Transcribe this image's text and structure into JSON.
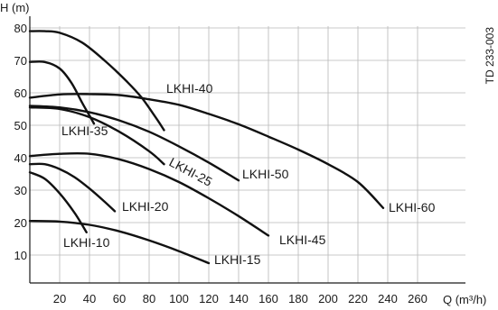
{
  "chart_data": {
    "type": "line",
    "xlabel": "Q (m³/h)",
    "ylabel": "H (m)",
    "doc_code": "TD 233-003",
    "xlim": [
      0,
      280
    ],
    "ylim": [
      0,
      80
    ],
    "x_ticks": [
      20,
      40,
      60,
      80,
      100,
      120,
      140,
      160,
      180,
      200,
      220,
      240,
      260
    ],
    "y_ticks": [
      10,
      20,
      30,
      40,
      50,
      60,
      70,
      80
    ],
    "grid": true,
    "series": [
      {
        "name": "LKHI-10",
        "x": [
          0,
          10,
          20,
          30,
          38
        ],
        "y": [
          35.5,
          33.5,
          29,
          23,
          17
        ]
      },
      {
        "name": "LKHI-15",
        "x": [
          0,
          20,
          40,
          60,
          80,
          100,
          120
        ],
        "y": [
          20.5,
          20.3,
          19.3,
          17.3,
          14.5,
          11.2,
          7.5
        ]
      },
      {
        "name": "LKHI-20",
        "x": [
          0,
          10,
          20,
          30,
          40,
          50,
          57
        ],
        "y": [
          38,
          38,
          36.5,
          34,
          30.5,
          26.5,
          23.5
        ]
      },
      {
        "name": "LKHI-25",
        "x": [
          0,
          20,
          40,
          60,
          80,
          90
        ],
        "y": [
          55.5,
          55,
          52.5,
          48,
          42,
          38
        ]
      },
      {
        "name": "LKHI-35",
        "x": [
          0,
          10,
          20,
          28,
          35,
          40,
          43
        ],
        "y": [
          69.5,
          69.5,
          67.5,
          63,
          57,
          53,
          50.5
        ]
      },
      {
        "name": "LKHI-40",
        "x": [
          0,
          10,
          20,
          35,
          50,
          65,
          75,
          85,
          90
        ],
        "y": [
          79,
          79,
          78.5,
          75.5,
          70,
          63.5,
          58.5,
          52,
          48.5
        ]
      },
      {
        "name": "LKHI-45",
        "x": [
          0,
          20,
          40,
          60,
          80,
          100,
          120,
          140,
          160
        ],
        "y": [
          40.5,
          41.2,
          41.2,
          39.5,
          36.5,
          32.5,
          27.5,
          22,
          16
        ]
      },
      {
        "name": "LKHI-50",
        "x": [
          0,
          20,
          40,
          60,
          80,
          100,
          120,
          140
        ],
        "y": [
          56,
          55.5,
          54,
          51.5,
          48,
          43.5,
          38.5,
          33
        ]
      },
      {
        "name": "LKHI-60",
        "x": [
          0,
          20,
          40,
          60,
          80,
          100,
          120,
          140,
          160,
          180,
          200,
          220,
          237
        ],
        "y": [
          58.5,
          59.5,
          59.6,
          59.3,
          58,
          56.3,
          53.5,
          50.3,
          46.5,
          42.5,
          38,
          32.5,
          24.5
        ]
      }
    ],
    "labels": [
      {
        "series": "LKHI-10",
        "text": "LKHI-10"
      },
      {
        "series": "LKHI-15",
        "text": "LKHI-15"
      },
      {
        "series": "LKHI-20",
        "text": "LKHI-20"
      },
      {
        "series": "LKHI-25",
        "text": "LKHI-25"
      },
      {
        "series": "LKHI-35",
        "text": "LKHI-35"
      },
      {
        "series": "LKHI-40",
        "text": "LKHI-40"
      },
      {
        "series": "LKHI-45",
        "text": "LKHI-45"
      },
      {
        "series": "LKHI-50",
        "text": "LKHI-50"
      },
      {
        "series": "LKHI-60",
        "text": "LKHI-60"
      }
    ],
    "colors": {
      "curve": "#111111",
      "grid": "#b8b8b8",
      "axis": "#1a1a1a",
      "text": "#1a1a1a"
    }
  }
}
